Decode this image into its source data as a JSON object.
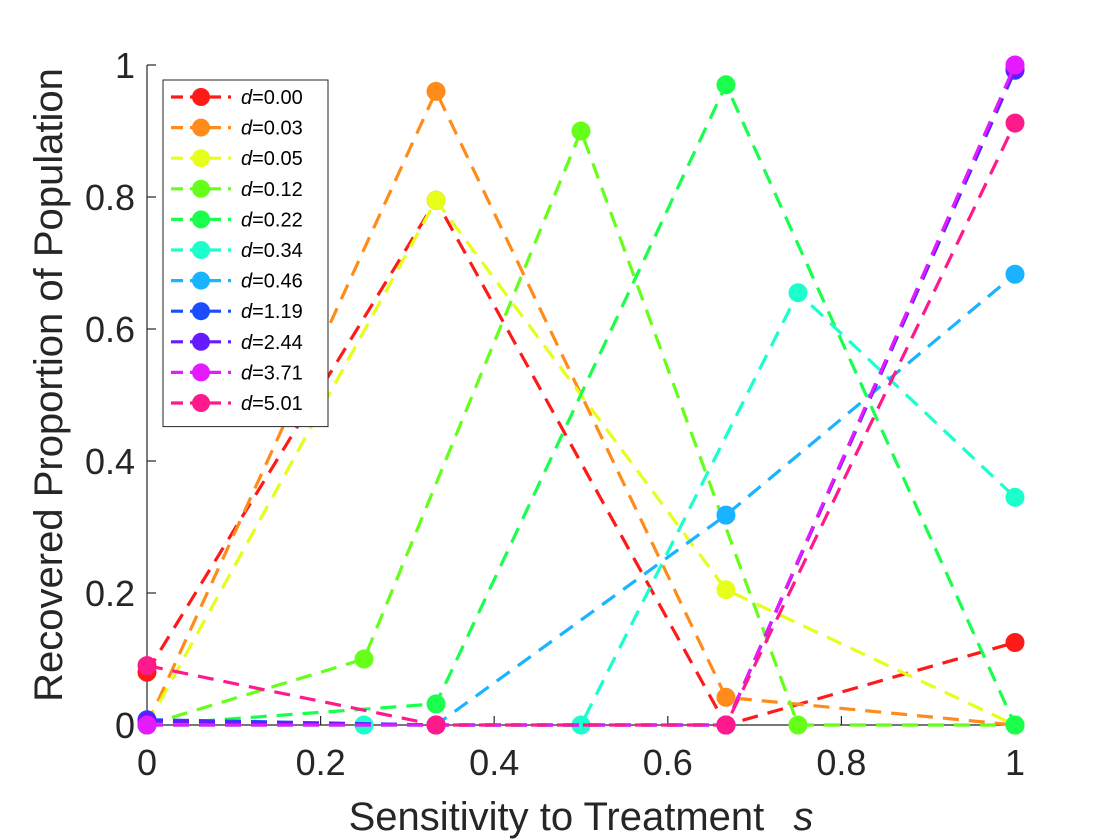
{
  "chart_data": {
    "type": "line",
    "title": "",
    "xlabel": "Sensitivity to Treatment",
    "xlabel_var": "s",
    "ylabel": "Recovered Proportion of Population",
    "xlim": [
      0,
      1
    ],
    "ylim": [
      0,
      1
    ],
    "x_ticks": [
      "0",
      "0.2",
      "0.4",
      "0.6",
      "0.8",
      "1"
    ],
    "y_ticks": [
      "0",
      "0.2",
      "0.4",
      "0.6",
      "0.8",
      "1"
    ],
    "legend_position": "top-left",
    "legend_prefix": "d",
    "line_style": "dashed",
    "marker": "circle",
    "grid": false,
    "series": [
      {
        "name": "=0.00",
        "color": "#ff1a1a",
        "points": [
          [
            0,
            0.08
          ],
          [
            0.333,
            0.795
          ],
          [
            0.667,
            0.0
          ],
          [
            1,
            0.125
          ]
        ]
      },
      {
        "name": "=0.03",
        "color": "#ff8c1a",
        "points": [
          [
            0,
            0.0
          ],
          [
            0.333,
            0.96
          ],
          [
            0.667,
            0.042
          ],
          [
            1,
            0.0
          ]
        ]
      },
      {
        "name": "=0.05",
        "color": "#e6ff1a",
        "points": [
          [
            0,
            0.0
          ],
          [
            0.333,
            0.795
          ],
          [
            0.667,
            0.205
          ],
          [
            1,
            0.0
          ]
        ]
      },
      {
        "name": "=0.12",
        "color": "#66ff1a",
        "points": [
          [
            0,
            0.0
          ],
          [
            0.25,
            0.1
          ],
          [
            0.5,
            0.9
          ],
          [
            0.75,
            0.0
          ],
          [
            1,
            0.0
          ]
        ]
      },
      {
        "name": "=0.22",
        "color": "#1aff4d",
        "points": [
          [
            0,
            0.0
          ],
          [
            0.333,
            0.032
          ],
          [
            0.667,
            0.97
          ],
          [
            1,
            0.0
          ]
        ]
      },
      {
        "name": "=0.34",
        "color": "#1affcc",
        "points": [
          [
            0,
            0.0
          ],
          [
            0.25,
            0.0
          ],
          [
            0.5,
            0.0
          ],
          [
            0.75,
            0.655
          ],
          [
            1,
            0.345
          ]
        ]
      },
      {
        "name": "=0.46",
        "color": "#1ab3ff",
        "points": [
          [
            0,
            0.0
          ],
          [
            0.333,
            0.0
          ],
          [
            0.667,
            0.318
          ],
          [
            1,
            0.683
          ]
        ]
      },
      {
        "name": "=1.19",
        "color": "#1a4dff",
        "points": [
          [
            0,
            0.008
          ],
          [
            0.333,
            0.0
          ],
          [
            0.667,
            0.0
          ],
          [
            1,
            0.992
          ]
        ]
      },
      {
        "name": "=2.44",
        "color": "#661aff",
        "points": [
          [
            0,
            0.006
          ],
          [
            0.333,
            0.0
          ],
          [
            0.667,
            0.0
          ],
          [
            1,
            0.994
          ]
        ]
      },
      {
        "name": "=3.71",
        "color": "#e61aff",
        "points": [
          [
            0,
            0.0
          ],
          [
            0.333,
            0.0
          ],
          [
            0.667,
            0.0
          ],
          [
            1,
            1.0
          ]
        ]
      },
      {
        "name": "=5.01",
        "color": "#ff1a8c",
        "points": [
          [
            0,
            0.09
          ],
          [
            0.333,
            0.0
          ],
          [
            0.667,
            0.0
          ],
          [
            1,
            0.912
          ]
        ]
      }
    ]
  }
}
